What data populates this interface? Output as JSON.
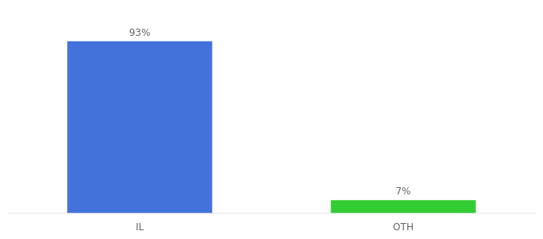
{
  "chart_data": {
    "type": "bar",
    "categories": [
      "IL",
      "OTH"
    ],
    "values": [
      93,
      7
    ],
    "value_labels": [
      "93%",
      "7%"
    ],
    "colors": [
      "#4472db",
      "#33cc33"
    ],
    "ylim": [
      0,
      105
    ],
    "grid": false,
    "data_labels": true,
    "tick_labels": "x"
  }
}
